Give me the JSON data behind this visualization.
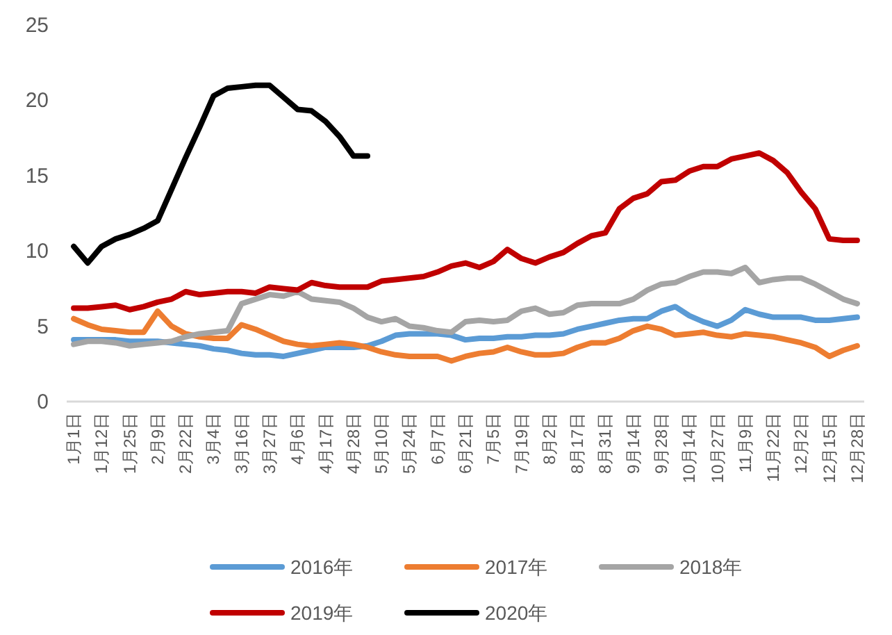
{
  "chart_data": {
    "type": "line",
    "categories": [
      "1月1日",
      null,
      "1月12日",
      null,
      "1月25日",
      null,
      "2月9日",
      null,
      "2月22日",
      null,
      "3月4日",
      null,
      "3月16日",
      null,
      "3月27日",
      null,
      "4月6日",
      null,
      "4月17日",
      null,
      "4月28日",
      null,
      "5月10日",
      null,
      "5月24日",
      null,
      "6月7日",
      null,
      "6月21日",
      null,
      "7月5日",
      null,
      "7月19日",
      null,
      "8月2日",
      null,
      "8月17日",
      null,
      "8月31日",
      null,
      "9月14日",
      null,
      "9月28日",
      null,
      "10月14日",
      null,
      "10月27日",
      null,
      "11月9日",
      null,
      "11月22日",
      null,
      "12月2日",
      null,
      "12月15日",
      null,
      "12月28日"
    ],
    "series": [
      {
        "name": "2016年",
        "color": "#5b9bd5",
        "values": [
          4.1,
          4.1,
          4.1,
          4.1,
          4.0,
          4.0,
          4.0,
          3.9,
          3.8,
          3.7,
          3.5,
          3.4,
          3.2,
          3.1,
          3.1,
          3.0,
          3.2,
          3.4,
          3.6,
          3.6,
          3.6,
          3.7,
          4.0,
          4.4,
          4.5,
          4.5,
          4.5,
          4.4,
          4.1,
          4.2,
          4.2,
          4.3,
          4.3,
          4.4,
          4.4,
          4.5,
          4.8,
          5.0,
          5.2,
          5.4,
          5.5,
          5.5,
          6.0,
          6.3,
          5.7,
          5.3,
          5.0,
          5.4,
          6.1,
          5.8,
          5.6,
          5.6,
          5.6,
          5.4,
          5.4,
          5.5,
          5.6
        ]
      },
      {
        "name": "2017年",
        "color": "#ed7d31",
        "values": [
          5.5,
          5.1,
          4.8,
          4.7,
          4.6,
          4.6,
          6.0,
          5.0,
          4.5,
          4.3,
          4.2,
          4.2,
          5.1,
          4.8,
          4.4,
          4.0,
          3.8,
          3.7,
          3.8,
          3.9,
          3.8,
          3.6,
          3.3,
          3.1,
          3.0,
          3.0,
          3.0,
          2.7,
          3.0,
          3.2,
          3.3,
          3.6,
          3.3,
          3.1,
          3.1,
          3.2,
          3.6,
          3.9,
          3.9,
          4.2,
          4.7,
          5.0,
          4.8,
          4.4,
          4.5,
          4.6,
          4.4,
          4.3,
          4.5,
          4.4,
          4.3,
          4.1,
          3.9,
          3.6,
          3.0,
          3.4,
          3.7
        ]
      },
      {
        "name": "2018年",
        "color": "#a5a5a5",
        "values": [
          3.8,
          4.0,
          4.0,
          3.9,
          3.7,
          3.8,
          3.9,
          4.0,
          4.3,
          4.5,
          4.6,
          4.7,
          6.5,
          6.8,
          7.1,
          7.0,
          7.3,
          6.8,
          6.7,
          6.6,
          6.2,
          5.6,
          5.3,
          5.5,
          5.0,
          4.9,
          4.7,
          4.6,
          5.3,
          5.4,
          5.3,
          5.4,
          6.0,
          6.2,
          5.8,
          5.9,
          6.4,
          6.5,
          6.5,
          6.5,
          6.8,
          7.4,
          7.8,
          7.9,
          8.3,
          8.6,
          8.6,
          8.5,
          8.9,
          7.9,
          8.1,
          8.2,
          8.2,
          7.8,
          7.3,
          6.8,
          6.5
        ]
      },
      {
        "name": "2019年",
        "color": "#c00000",
        "values": [
          6.2,
          6.2,
          6.3,
          6.4,
          6.1,
          6.3,
          6.6,
          6.8,
          7.3,
          7.1,
          7.2,
          7.3,
          7.3,
          7.2,
          7.6,
          7.5,
          7.4,
          7.9,
          7.7,
          7.6,
          7.6,
          7.6,
          8.0,
          8.1,
          8.2,
          8.3,
          8.6,
          9.0,
          9.2,
          8.9,
          9.3,
          10.1,
          9.5,
          9.2,
          9.6,
          9.9,
          10.5,
          11.0,
          11.2,
          12.8,
          13.5,
          13.8,
          14.6,
          14.7,
          15.3,
          15.6,
          15.6,
          16.1,
          16.3,
          16.5,
          16.0,
          15.2,
          13.9,
          12.8,
          10.8,
          10.7,
          10.7
        ]
      },
      {
        "name": "2020年",
        "color": "#000000",
        "values": [
          10.3,
          9.2,
          10.3,
          10.8,
          11.1,
          11.5,
          12.0,
          14.1,
          16.2,
          18.2,
          20.3,
          20.8,
          20.9,
          21.0,
          21.0,
          20.2,
          19.4,
          19.3,
          18.6,
          17.6,
          16.3,
          16.3,
          null,
          null,
          null,
          null,
          null,
          null,
          null,
          null,
          null,
          null,
          null,
          null,
          null,
          null,
          null,
          null,
          null,
          null,
          null,
          null,
          null,
          null,
          null,
          null,
          null,
          null,
          null,
          null,
          null,
          null,
          null,
          null,
          null,
          null,
          null
        ]
      }
    ],
    "ylim": [
      0,
      25
    ],
    "yticks": [
      0,
      5,
      10,
      15,
      20,
      25
    ],
    "grid": false,
    "legend": "bottom",
    "marker": "none",
    "line_style": "solid"
  }
}
